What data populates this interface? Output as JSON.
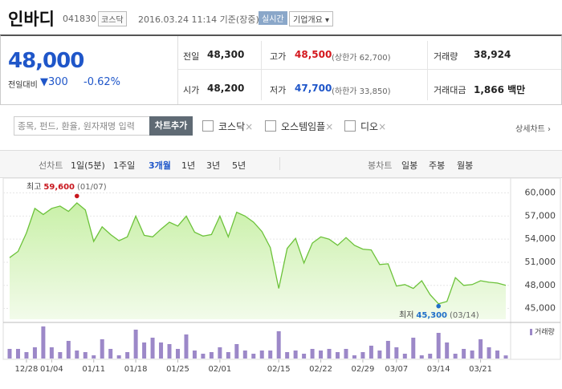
{
  "header": {
    "name": "인바디",
    "code": "041830",
    "market": "코스닥",
    "timestamp": "2016.03.24 11:14 기준(장중)",
    "realtime_button": "실시간",
    "company_button": "기업개요"
  },
  "quote": {
    "price": "48,000",
    "change_label": "전일대비",
    "change": "▼300",
    "change_rate": "-0.62%",
    "stats": [
      {
        "label": "전일",
        "value": "48,300"
      },
      {
        "label": "고가",
        "value": "48,500",
        "note": "(상한가 62,700)"
      },
      {
        "label": "거래량",
        "value": "38,924"
      },
      {
        "label": "시가",
        "value": "48,200"
      },
      {
        "label": "저가",
        "value": "47,700",
        "note": "(하한가 33,850)"
      },
      {
        "label": "거래대금",
        "value": "1,866 백만"
      }
    ]
  },
  "compare": {
    "placeholder": "종목, 펀드, 환율, 원자재명 입력",
    "add_button": "차트추가",
    "items": [
      "코스닥",
      "오스템임플",
      "디오"
    ],
    "detail_link": "상세차트"
  },
  "tabs": {
    "line_label": "선차트",
    "line_periods": [
      "1일(5분)",
      "1주일",
      "3개월",
      "1년",
      "3년",
      "5년"
    ],
    "candle_label": "봉차트",
    "candle_periods": [
      "일봉",
      "주봉",
      "월봉"
    ]
  },
  "chart_data": {
    "type": "line",
    "categories": [
      null,
      null,
      "12/28",
      null,
      null,
      "01/04",
      null,
      null,
      null,
      null,
      "01/11",
      null,
      null,
      null,
      null,
      "01/18",
      null,
      null,
      null,
      null,
      "01/25",
      null,
      null,
      null,
      null,
      "02/01",
      null,
      null,
      null,
      null,
      null,
      null,
      "02/15",
      null,
      null,
      null,
      null,
      "02/22",
      null,
      null,
      null,
      null,
      "02/29",
      null,
      null,
      null,
      "03/07",
      null,
      null,
      null,
      null,
      "03/14",
      null,
      null,
      null,
      null,
      "03/21",
      null,
      null,
      null
    ],
    "series": [
      {
        "color": "#6cc23a",
        "values": [
          51600,
          52400,
          54800,
          58000,
          57200,
          58000,
          58300,
          57600,
          58700,
          57800,
          53700,
          55600,
          54600,
          53800,
          54300,
          57000,
          54500,
          54300,
          55300,
          56200,
          55700,
          57000,
          54900,
          54400,
          54600,
          57000,
          54300,
          57500,
          57000,
          56200,
          55000,
          52900,
          47600,
          52800,
          54100,
          50900,
          53500,
          54300,
          54000,
          53200,
          54200,
          53200,
          52700,
          52600,
          50700,
          50800,
          47900,
          48100,
          47600,
          48600,
          46800,
          45600,
          45900,
          49000,
          48000,
          48100,
          48600,
          48400,
          48300,
          48000
        ]
      },
      {
        "name": "거래량",
        "type": "bar",
        "axis": "y2",
        "color": "#9c88c8",
        "values": [
          120000,
          120000,
          80000,
          140000,
          400000,
          140000,
          80000,
          220000,
          100000,
          80000,
          40000,
          240000,
          120000,
          40000,
          80000,
          360000,
          200000,
          260000,
          200000,
          180000,
          120000,
          300000,
          100000,
          60000,
          80000,
          140000,
          80000,
          180000,
          100000,
          60000,
          100000,
          100000,
          340000,
          80000,
          100000,
          60000,
          120000,
          100000,
          120000,
          80000,
          120000,
          40000,
          80000,
          160000,
          100000,
          220000,
          140000,
          60000,
          260000,
          40000,
          60000,
          320000,
          200000,
          60000,
          120000,
          100000,
          240000,
          140000,
          100000,
          38924
        ]
      }
    ],
    "ylim": [
      43600,
      61100
    ],
    "yticks": [
      {
        "value": 45000,
        "label": "45,000"
      },
      {
        "value": 48000,
        "label": "48,000"
      },
      {
        "value": 51000,
        "label": "51,000"
      },
      {
        "value": 54000,
        "label": "54,000"
      },
      {
        "value": 57000,
        "label": "57,000"
      },
      {
        "value": 60000,
        "label": "60,000"
      }
    ],
    "y2lim": [
      0,
      420000
    ],
    "grid": true,
    "high": {
      "label": "최고",
      "value": 59600,
      "value_label": "59,600",
      "date": "(01/07)"
    },
    "low": {
      "label": "최저",
      "value": 45300,
      "value_label": "45,300",
      "date": "(03/14)"
    }
  }
}
